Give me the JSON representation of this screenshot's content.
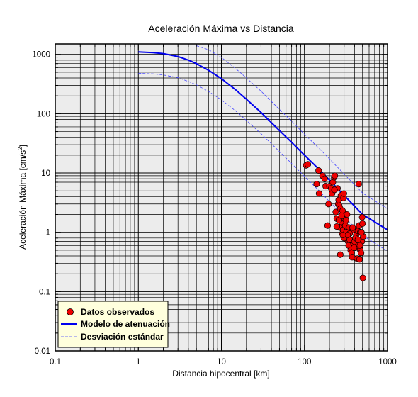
{
  "chart_data": {
    "type": "scatter",
    "title": "Aceleración Máxima vs Distancia",
    "xlabel": "Distancia hipocentral [km]",
    "ylabel": "Aceleración Máxima [cm/s",
    "ylabel_sup": "2",
    "ylabel_end": "]",
    "x_scale": "log",
    "y_scale": "log",
    "xlim": [
      0.1,
      1000
    ],
    "ylim": [
      0.01,
      1500
    ],
    "x_ticks": [
      {
        "value": 0.1,
        "label": "0.1"
      },
      {
        "value": 1,
        "label": "1"
      },
      {
        "value": 10,
        "label": "10"
      },
      {
        "value": 100,
        "label": "100"
      },
      {
        "value": 1000,
        "label": "1000"
      }
    ],
    "y_ticks": [
      {
        "value": 0.01,
        "label": "0.01"
      },
      {
        "value": 0.1,
        "label": "0.1"
      },
      {
        "value": 1,
        "label": "1"
      },
      {
        "value": 10,
        "label": "10"
      },
      {
        "value": 100,
        "label": "100"
      },
      {
        "value": 1000,
        "label": "1000"
      }
    ],
    "grid": true,
    "legend_position": "bottom-left",
    "legend": [
      {
        "label": "Datos observados",
        "kind": "marker"
      },
      {
        "label": "Modelo de atenuación",
        "kind": "solid-line"
      },
      {
        "label": "Desviación estándar",
        "kind": "dashed-line"
      }
    ],
    "colors": {
      "plot_background": "#ececec",
      "grid": "#000000",
      "model": "#0000ee",
      "std": "#4444ff",
      "marker_fill": "#ee0000",
      "marker_edge": "#000000",
      "legend_background": "#ffffdd"
    },
    "series": [
      {
        "name": "Datos observados",
        "kind": "scatter",
        "x": [
          105,
          110,
          140,
          148,
          165,
          175,
          180,
          195,
          200,
          210,
          215,
          220,
          228,
          232,
          238,
          245,
          250,
          255,
          258,
          262,
          266,
          270,
          275,
          278,
          282,
          285,
          288,
          292,
          295,
          298,
          302,
          306,
          310,
          315,
          320,
          325,
          330,
          335,
          340,
          345,
          350,
          360,
          370,
          375,
          380,
          390,
          400,
          410,
          420,
          430,
          440,
          445,
          450,
          455,
          460,
          470,
          480,
          490,
          495,
          500,
          505,
          510,
          230,
          260,
          280,
          300,
          320,
          350,
          380,
          410,
          440,
          470,
          150,
          190,
          245,
          330,
          395,
          465,
          485,
          270,
          290
        ],
        "y": [
          13.5,
          14,
          6.5,
          11,
          9,
          8,
          6,
          3,
          6,
          5.5,
          4.5,
          7,
          8.5,
          9,
          2.2,
          1.7,
          5.5,
          3,
          3.5,
          2.8,
          1.2,
          2.5,
          4.2,
          1.5,
          1.9,
          0.95,
          2.3,
          1.1,
          3.8,
          4.5,
          1.7,
          0.8,
          1.3,
          1.6,
          0.9,
          2,
          1.1,
          0.7,
          0.6,
          1.2,
          0.75,
          0.5,
          0.45,
          0.38,
          1.1,
          0.65,
          0.7,
          0.55,
          0.9,
          0.36,
          1.05,
          0.6,
          6.5,
          1.3,
          0.35,
          0.5,
          0.45,
          0.7,
          1.8,
          1.4,
          0.17,
          0.85,
          5.2,
          1.6,
          1.9,
          0.8,
          1.0,
          0.95,
          1.2,
          0.8,
          0.75,
          1.0,
          4.5,
          1.3,
          1.25,
          0.9,
          0.55,
          0.6,
          1.0,
          0.42,
          0.9
        ]
      },
      {
        "name": "Modelo de atenuación",
        "kind": "line",
        "x": [
          1,
          1.5,
          2,
          3,
          4,
          5,
          7,
          10,
          15,
          20,
          30,
          50,
          70,
          100,
          150,
          200,
          300,
          500,
          700,
          1000
        ],
        "y": [
          1100,
          1070,
          1030,
          920,
          800,
          700,
          540,
          390,
          250,
          175,
          105,
          52,
          33,
          20,
          11.5,
          7.6,
          4.2,
          2.0,
          1.5,
          1.1
        ]
      },
      {
        "name": "Desviación estándar (superior)",
        "kind": "line",
        "x": [
          5,
          7,
          10,
          15,
          20,
          30,
          50,
          70,
          100,
          150,
          200,
          300,
          500,
          700,
          1000
        ],
        "y": [
          1400,
          1200,
          890,
          570,
          400,
          240,
          118,
          75,
          45,
          26,
          17.3,
          9.6,
          4.6,
          3.4,
          2.5
        ]
      },
      {
        "name": "Desviación estándar (inferior)",
        "kind": "line",
        "x": [
          1,
          1.5,
          2,
          3,
          4,
          5,
          7,
          10,
          15,
          20,
          30,
          50,
          70,
          100,
          150,
          200,
          300,
          500,
          700,
          1000
        ],
        "y": [
          480,
          470,
          450,
          405,
          350,
          307,
          237,
          171,
          110,
          77,
          46,
          23,
          14.5,
          8.8,
          5.0,
          3.3,
          1.85,
          0.88,
          0.66,
          0.48
        ]
      }
    ]
  }
}
